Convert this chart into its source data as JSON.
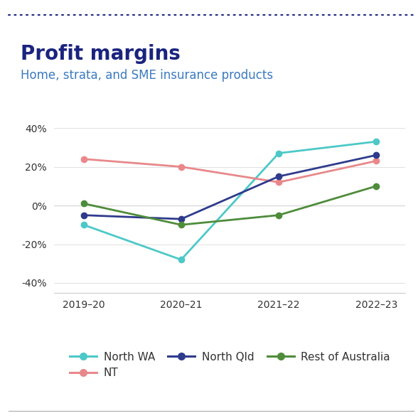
{
  "title": "Profit margins",
  "subtitle": "Home, strata, and SME insurance products",
  "x_labels": [
    "2019–20",
    "2020–21",
    "2021–22",
    "2022–23"
  ],
  "x_positions": [
    0,
    1,
    2,
    3
  ],
  "series": [
    {
      "name": "North WA",
      "values": [
        -10,
        -28,
        27,
        33
      ],
      "color": "#4DC8C8",
      "marker": "o",
      "linewidth": 2.0
    },
    {
      "name": "NT",
      "values": [
        24,
        20,
        12,
        23
      ],
      "color": "#E8888A",
      "marker": "o",
      "linewidth": 2.0
    },
    {
      "name": "North Qld",
      "values": [
        -5,
        -7,
        15,
        26
      ],
      "color": "#2E3B8C",
      "marker": "o",
      "linewidth": 2.0
    },
    {
      "name": "Rest of Australia",
      "values": [
        1,
        -10,
        -5,
        10
      ],
      "color": "#4E8C3A",
      "marker": "o",
      "linewidth": 2.0
    }
  ],
  "ylim": [
    -45,
    50
  ],
  "yticks": [
    -40,
    -20,
    0,
    20,
    40
  ],
  "ytick_labels": [
    "-40%",
    "-20%",
    "0%",
    "20%",
    "40%"
  ],
  "title_color": "#1a237e",
  "subtitle_color": "#3a7abf",
  "background_color": "#ffffff",
  "dot_border_color": "#1a237e",
  "zero_line_color": "#aaaaaa",
  "grid_color": "#e0e0e0",
  "title_fontsize": 20,
  "subtitle_fontsize": 12,
  "tick_fontsize": 10,
  "legend_fontsize": 11,
  "legend_order": [
    0,
    1,
    2,
    3
  ]
}
